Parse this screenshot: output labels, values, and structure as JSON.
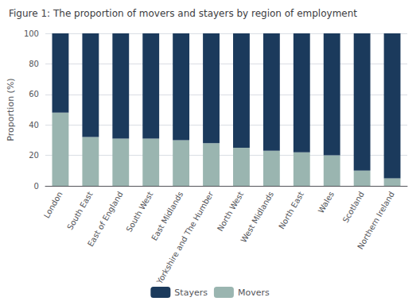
{
  "chart_data": {
    "type": "bar",
    "title": "Figure 1: The proportion of movers and stayers by region of employment",
    "ylabel": "Proportion (%)",
    "categories": [
      "London",
      "South East",
      "East of England",
      "South West",
      "East Midlands",
      "Yorkshire and The Humber",
      "North West",
      "West Midlands",
      "North East",
      "Wales",
      "Scotland",
      "Northern Ireland"
    ],
    "series": [
      {
        "name": "Movers",
        "color": "#9ab5b0",
        "values": [
          48,
          32,
          31,
          31,
          30,
          28,
          25,
          23,
          22,
          20,
          10,
          5
        ]
      },
      {
        "name": "Stayers",
        "color": "#1b3a5c",
        "values": [
          52,
          68,
          69,
          69,
          70,
          72,
          75,
          77,
          78,
          80,
          90,
          95
        ]
      }
    ],
    "stacked": true,
    "ylim": [
      0,
      100
    ],
    "yticks": [
      0,
      20,
      40,
      60,
      80,
      100
    ],
    "grid": true,
    "legend": "bottom"
  }
}
